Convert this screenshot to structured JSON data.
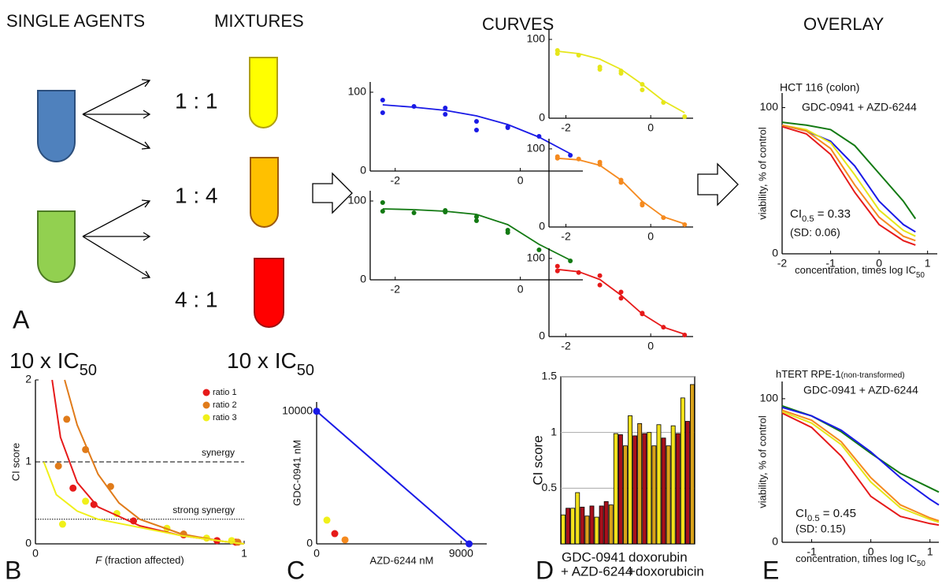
{
  "labels": {
    "single_agents": "SINGLE AGENTS",
    "mixtures": "MIXTURES",
    "curves": "CURVES",
    "overlay": "OVERLAY",
    "ratios": [
      "1 : 1",
      "1 : 4",
      "4 : 1"
    ],
    "panels": [
      "A",
      "B",
      "C",
      "D",
      "E"
    ],
    "ic50": [
      "10 x IC",
      "50"
    ]
  },
  "chart_data": [
    {
      "type": "scatter",
      "xlim": [
        -2.4,
        1.0
      ],
      "ylim": [
        0,
        113
      ],
      "xticks": [
        -2,
        0
      ],
      "yticks": [
        0,
        100
      ],
      "series": [
        {
          "color": "#1a1ae6",
          "mode": "markers",
          "x": [
            -2.2,
            -2.2,
            -1.7,
            -1.2,
            -1.2,
            -0.7,
            -0.7,
            -0.2,
            -0.2,
            0.3,
            0.8
          ],
          "values": [
            90,
            74,
            82,
            80,
            72,
            63,
            52,
            56,
            55,
            44,
            20
          ]
        },
        {
          "color": "#1a1ae6",
          "mode": "line",
          "x": [
            -2.2,
            -1.7,
            -1.2,
            -0.7,
            -0.2,
            0.3,
            0.8
          ],
          "values": [
            84,
            81,
            77,
            70,
            59,
            43,
            22
          ]
        }
      ]
    },
    {
      "type": "scatter",
      "xlim": [
        -2.4,
        1.0
      ],
      "ylim": [
        0,
        113
      ],
      "xticks": [
        -2,
        0
      ],
      "yticks": [
        0,
        100
      ],
      "series": [
        {
          "color": "#137a13",
          "mode": "markers",
          "x": [
            -2.2,
            -2.2,
            -1.7,
            -1.2,
            -1.2,
            -0.7,
            -0.7,
            -0.2,
            -0.2,
            0.3,
            0.8
          ],
          "values": [
            98,
            87,
            85,
            88,
            86,
            80,
            75,
            63,
            60,
            38,
            24
          ]
        },
        {
          "color": "#137a13",
          "mode": "line",
          "x": [
            -2.2,
            -1.7,
            -1.2,
            -0.7,
            -0.2,
            0.3,
            0.8
          ],
          "values": [
            90,
            89,
            87,
            83,
            70,
            45,
            25
          ]
        }
      ]
    },
    {
      "type": "scatter",
      "xlim": [
        -2.4,
        1.0
      ],
      "ylim": [
        0,
        113
      ],
      "xticks": [
        -2,
        0
      ],
      "yticks": [
        0,
        100
      ],
      "series": [
        {
          "color": "#e6e61a",
          "mode": "markers",
          "x": [
            -2.2,
            -2.2,
            -1.7,
            -1.2,
            -1.2,
            -0.7,
            -0.7,
            -0.2,
            -0.2,
            0.3,
            0.8
          ],
          "values": [
            86,
            82,
            80,
            65,
            62,
            60,
            57,
            43,
            36,
            20,
            2
          ]
        },
        {
          "color": "#e6e61a",
          "mode": "line",
          "x": [
            -2.2,
            -1.7,
            -1.2,
            -0.7,
            -0.2,
            0.3,
            0.8
          ],
          "values": [
            85,
            82,
            75,
            62,
            43,
            22,
            7
          ]
        }
      ]
    },
    {
      "type": "scatter",
      "xlim": [
        -2.4,
        1.0
      ],
      "ylim": [
        0,
        113
      ],
      "xticks": [
        -2,
        0
      ],
      "yticks": [
        0,
        100
      ],
      "series": [
        {
          "color": "#f58a1f",
          "mode": "markers",
          "x": [
            -2.2,
            -2.2,
            -1.7,
            -1.2,
            -1.2,
            -0.7,
            -0.7,
            -0.2,
            -0.2,
            0.3,
            0.8
          ],
          "values": [
            90,
            88,
            87,
            83,
            80,
            60,
            57,
            30,
            28,
            12,
            3
          ]
        },
        {
          "color": "#f58a1f",
          "mode": "line",
          "x": [
            -2.2,
            -1.7,
            -1.2,
            -0.7,
            -0.2,
            0.3,
            0.8
          ],
          "values": [
            88,
            86,
            79,
            60,
            33,
            13,
            4
          ]
        }
      ]
    },
    {
      "type": "scatter",
      "xlim": [
        -2.4,
        1.0
      ],
      "ylim": [
        0,
        113
      ],
      "xticks": [
        -2,
        0
      ],
      "yticks": [
        0,
        100
      ],
      "series": [
        {
          "color": "#e61a1a",
          "mode": "markers",
          "x": [
            -2.2,
            -2.2,
            -1.7,
            -1.2,
            -1.2,
            -0.7,
            -0.7,
            -0.2,
            -0.2,
            0.3,
            0.8
          ],
          "values": [
            90,
            84,
            82,
            78,
            66,
            57,
            49,
            30,
            29,
            12,
            2
          ]
        },
        {
          "color": "#e61a1a",
          "mode": "line",
          "x": [
            -2.2,
            -1.7,
            -1.2,
            -0.7,
            -0.2,
            0.3,
            0.8
          ],
          "values": [
            86,
            83,
            73,
            53,
            29,
            12,
            3
          ]
        }
      ]
    },
    {
      "type": "line",
      "xlim": [
        -2,
        1.2
      ],
      "ylim": [
        0,
        110
      ],
      "xticks": [
        -2,
        -1,
        0,
        1
      ],
      "yticks": [
        0,
        100
      ],
      "xlabel": [
        "concentration, times log IC",
        "50"
      ],
      "ylabel": "viability, % of control",
      "annotations": [
        "HCT 116 (colon)",
        "GDC-0941 + AZD-6244",
        [
          "CI",
          "0.5",
          " = 0.33"
        ],
        "(SD: 0.06)"
      ],
      "series": [
        {
          "color": "#137a13",
          "mode": "line",
          "x": [
            -2,
            -1.5,
            -1,
            -0.5,
            0,
            0.5,
            0.75
          ],
          "values": [
            90,
            88,
            85,
            74,
            55,
            36,
            24
          ]
        },
        {
          "color": "#1a1ae6",
          "mode": "line",
          "x": [
            -2,
            -1.5,
            -1,
            -0.5,
            0,
            0.5,
            0.75
          ],
          "values": [
            88,
            84,
            77,
            60,
            36,
            20,
            15
          ]
        },
        {
          "color": "#e6e61a",
          "mode": "line",
          "x": [
            -2,
            -1.5,
            -1,
            -0.5,
            0,
            0.5,
            0.75
          ],
          "values": [
            88,
            85,
            76,
            54,
            30,
            16,
            12
          ]
        },
        {
          "color": "#f58a1f",
          "mode": "line",
          "x": [
            -2,
            -1.5,
            -1,
            -0.5,
            0,
            0.5,
            0.75
          ],
          "values": [
            88,
            84,
            72,
            47,
            25,
            12,
            9
          ]
        },
        {
          "color": "#e61a1a",
          "mode": "line",
          "x": [
            -2,
            -1.5,
            -1,
            -0.5,
            0,
            0.5,
            0.75
          ],
          "values": [
            87,
            82,
            68,
            42,
            20,
            9,
            6
          ]
        }
      ]
    },
    {
      "type": "scatter",
      "xlim": [
        0,
        1
      ],
      "ylim": [
        0,
        2
      ],
      "xticks": [
        0,
        1
      ],
      "yticks": [
        0,
        1,
        2
      ],
      "xlabel": [
        "F",
        " (fraction affected)"
      ],
      "ylabel": "CI score",
      "hlines": [
        {
          "value": 1,
          "label": "synergy",
          "style": "dashed"
        },
        {
          "value": 0.3,
          "label": "strong synergy",
          "style": "dotted"
        }
      ],
      "series": [
        {
          "name": "ratio 1",
          "color": "#e61a1a",
          "mode": "markers",
          "x": [
            0.18,
            0.28,
            0.47,
            0.71,
            0.87,
            0.96
          ],
          "values": [
            0.68,
            0.48,
            0.28,
            0.11,
            0.04,
            0.02
          ]
        },
        {
          "name": "ratio 2",
          "color": "#e07b1a",
          "mode": "markers",
          "x": [
            0.11,
            0.15,
            0.24,
            0.36,
            0.71,
            0.97
          ],
          "values": [
            0.95,
            1.52,
            1.15,
            0.7,
            0.12,
            0.02
          ]
        },
        {
          "name": "ratio 3",
          "color": "#f0f01a",
          "mode": "markers",
          "x": [
            0.13,
            0.24,
            0.39,
            0.63,
            0.82,
            0.94
          ],
          "values": [
            0.24,
            0.52,
            0.37,
            0.19,
            0.07,
            0.04
          ]
        },
        {
          "color": "#e61a1a",
          "mode": "line",
          "x": [
            0.08,
            0.12,
            0.2,
            0.3,
            0.5,
            0.7,
            0.9,
            1.0
          ],
          "values": [
            2.0,
            1.3,
            0.75,
            0.45,
            0.22,
            0.1,
            0.03,
            0
          ]
        },
        {
          "color": "#e07b1a",
          "mode": "line",
          "x": [
            0.14,
            0.2,
            0.3,
            0.4,
            0.5,
            0.7,
            0.9,
            1.0
          ],
          "values": [
            2.0,
            1.45,
            0.85,
            0.5,
            0.3,
            0.12,
            0.03,
            0
          ]
        },
        {
          "color": "#f0f01a",
          "mode": "line",
          "x": [
            0.04,
            0.1,
            0.2,
            0.3,
            0.5,
            0.7,
            0.9,
            1.0
          ],
          "values": [
            1.0,
            0.6,
            0.4,
            0.3,
            0.2,
            0.1,
            0.03,
            0
          ]
        }
      ]
    },
    {
      "type": "scatter",
      "xlim": [
        0,
        10600
      ],
      "ylim": [
        0,
        10700
      ],
      "xticks": [
        0,
        9000
      ],
      "yticks": [
        0,
        10000
      ],
      "xlabel": "AZD-6244 nM",
      "ylabel": "GDC-0941 nM",
      "series": [
        {
          "color": "#1a1ae6",
          "mode": "line",
          "x": [
            0,
            9500
          ],
          "values": [
            10000,
            0
          ]
        },
        {
          "color": "#1a1ae6",
          "mode": "markers",
          "x": [
            0,
            9500
          ],
          "values": [
            10000,
            0
          ]
        },
        {
          "color": "#f0f01a",
          "mode": "markers",
          "x": [
            640
          ],
          "values": [
            1790
          ]
        },
        {
          "color": "#e61a1a",
          "mode": "markers",
          "x": [
            1130
          ],
          "values": [
            770
          ]
        },
        {
          "color": "#f58a1f",
          "mode": "markers",
          "x": [
            1770
          ],
          "values": [
            300
          ]
        }
      ]
    },
    {
      "type": "bar",
      "ylim": [
        0,
        1.5
      ],
      "yticks": [
        0.5,
        1,
        1.5
      ],
      "grid": true,
      "ylabel": "CI score",
      "group_labels": [
        [
          "GDC-0941",
          "+ AZD-6244"
        ],
        [
          "doxorubin",
          "+doxorubicin"
        ]
      ],
      "values": [
        0.26,
        0.32,
        0.32,
        0.46,
        0.33,
        0.25,
        0.34,
        0.24,
        0.34,
        0.38,
        0.35,
        0.99,
        0.98,
        0.88,
        1.15,
        0.97,
        1.08,
        0.99,
        1.0,
        0.88,
        1.07,
        0.95,
        0.88,
        1.06,
        0.99,
        1.31,
        1.1,
        1.43
      ],
      "colors": [
        "#f2e21b",
        "#a8101c",
        "#f2e21b",
        "#f2e21b",
        "#a8101c",
        "#d9a21a",
        "#a8101c",
        "#f2e21b",
        "#a8101c",
        "#a8101c",
        "#d9a21a",
        "#f2e21b",
        "#a8101c",
        "#d9a21a",
        "#f2e21b",
        "#a8101c",
        "#d9a21a",
        "#a8101c",
        "#f2e21b",
        "#d9a21a",
        "#f2e21b",
        "#a8101c",
        "#d9a21a",
        "#f2e21b",
        "#a8101c",
        "#f2e21b",
        "#a8101c",
        "#d9a21a"
      ]
    },
    {
      "type": "line",
      "xlim": [
        -1.5,
        1.15
      ],
      "ylim": [
        0,
        112
      ],
      "xticks": [
        -1,
        0,
        1
      ],
      "yticks": [
        0,
        100
      ],
      "xlabel": [
        "concentration, times log IC",
        "50"
      ],
      "ylabel": "viability, % of control",
      "annotations": [
        [
          "hTERT RPE-1",
          "(non-transformed)"
        ],
        "GDC-0941 + AZD-6244",
        [
          "CI",
          "0.5",
          " = 0.45"
        ],
        "(SD: 0.15)"
      ],
      "series": [
        {
          "color": "#137a13",
          "mode": "line",
          "x": [
            -1.5,
            -1,
            -0.5,
            0,
            0.5,
            1,
            1.15
          ],
          "values": [
            95,
            88,
            77,
            62,
            48,
            38,
            35
          ]
        },
        {
          "color": "#1a1ae6",
          "mode": "line",
          "x": [
            -1.5,
            -1,
            -0.5,
            0,
            0.5,
            1,
            1.15
          ],
          "values": [
            94,
            88,
            78,
            63,
            45,
            30,
            26
          ]
        },
        {
          "color": "#e6e61a",
          "mode": "line",
          "x": [
            -1.5,
            -1,
            -0.5,
            0,
            0.5,
            1,
            1.15
          ],
          "values": [
            91,
            83,
            68,
            42,
            24,
            16,
            14
          ]
        },
        {
          "color": "#f58a1f",
          "mode": "line",
          "x": [
            -1.5,
            -1,
            -0.5,
            0,
            0.5,
            1,
            1.15
          ],
          "values": [
            92,
            85,
            70,
            45,
            26,
            17,
            15
          ]
        },
        {
          "color": "#e61a1a",
          "mode": "line",
          "x": [
            -1.5,
            -1,
            -0.5,
            0,
            0.5,
            1,
            1.15
          ],
          "values": [
            90,
            80,
            60,
            32,
            18,
            13,
            12
          ]
        }
      ]
    }
  ]
}
